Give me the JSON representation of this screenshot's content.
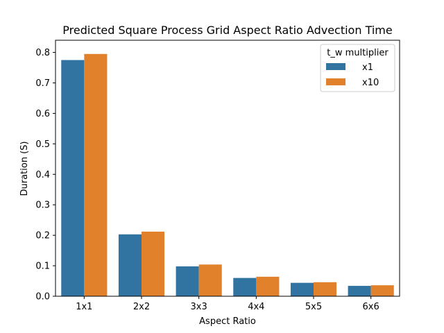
{
  "chart_data": {
    "type": "bar",
    "title": "Predicted Square Process Grid Aspect Ratio Advection Time",
    "xlabel": "Aspect Ratio",
    "ylabel": "Duration (S)",
    "categories": [
      "1x1",
      "2x2",
      "3x3",
      "4x4",
      "5x5",
      "6x6"
    ],
    "series": [
      {
        "name": "x1",
        "color": "#3274a1",
        "values": [
          0.775,
          0.203,
          0.098,
          0.06,
          0.044,
          0.034
        ]
      },
      {
        "name": "x10",
        "color": "#e1812c",
        "values": [
          0.795,
          0.212,
          0.104,
          0.064,
          0.046,
          0.036
        ]
      }
    ],
    "ylim": [
      0,
      0.84
    ],
    "yticks": [
      0.0,
      0.1,
      0.2,
      0.3,
      0.4,
      0.5,
      0.6,
      0.7,
      0.8
    ],
    "ytick_labels": [
      "0.0",
      "0.1",
      "0.2",
      "0.3",
      "0.4",
      "0.5",
      "0.6",
      "0.7",
      "0.8"
    ],
    "grid": false,
    "legend": {
      "title": "t_w multiplier",
      "placement": "top-right"
    }
  }
}
